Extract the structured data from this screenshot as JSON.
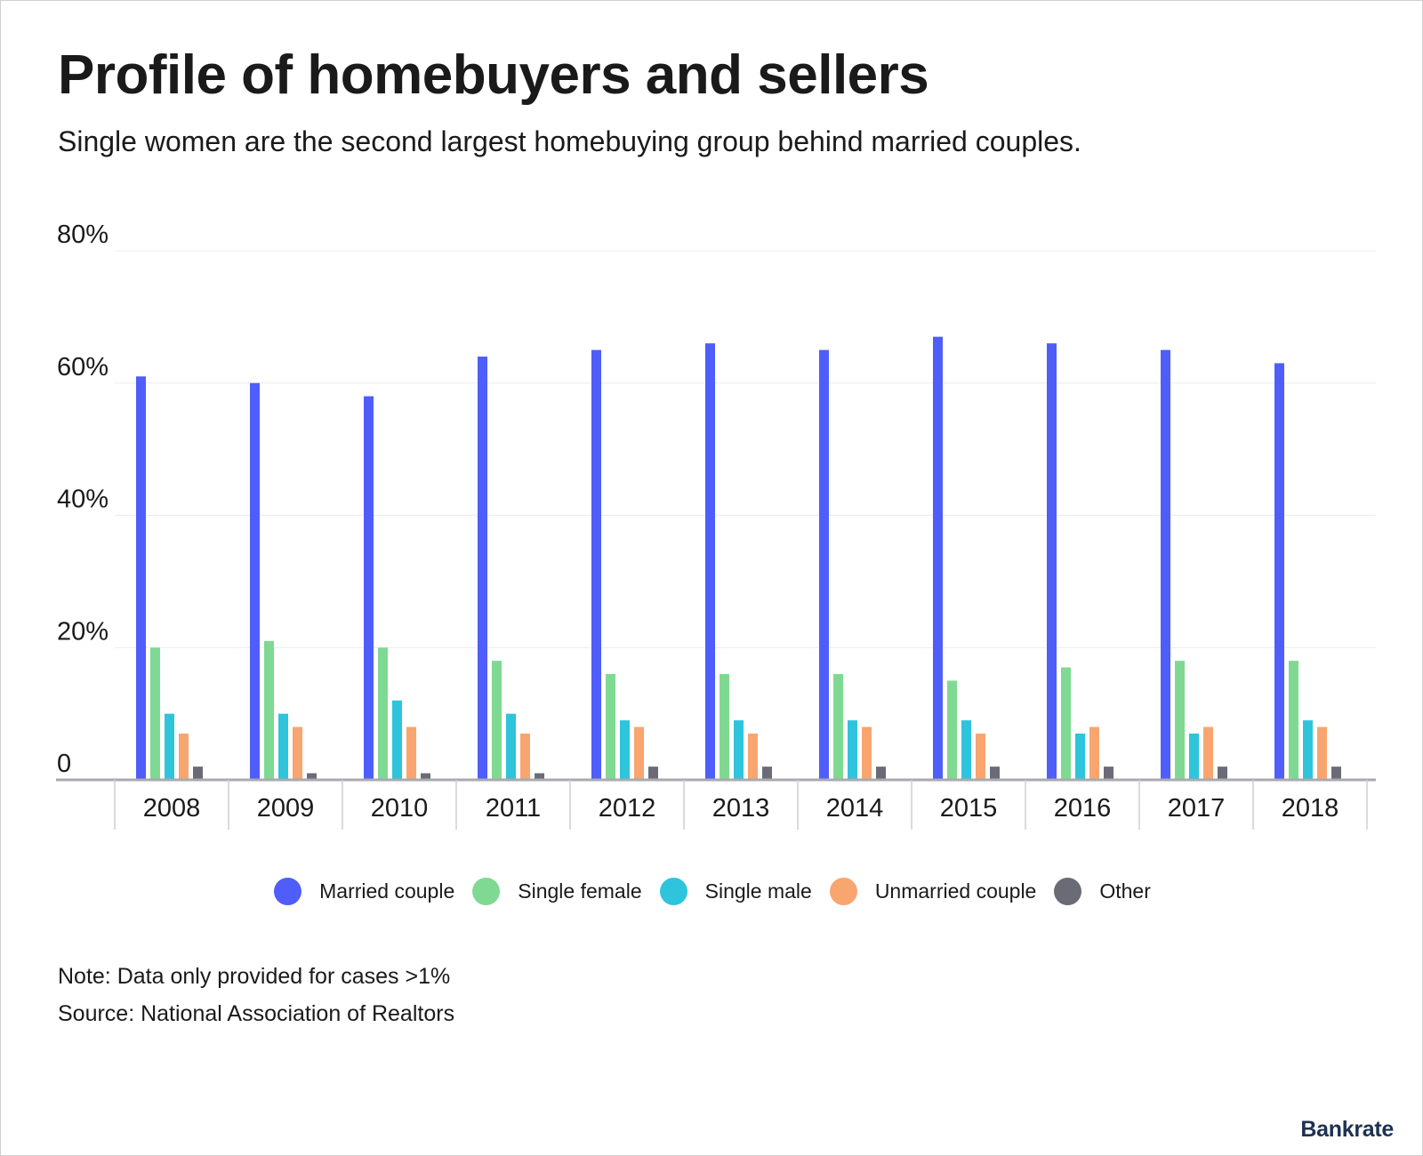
{
  "title": "Profile of homebuyers and sellers",
  "subtitle": "Single women are the second largest homebuying group behind married couples.",
  "note": "Note: Data only provided for cases >1%",
  "source": "Source: National Association of Realtors",
  "logo": "Bankrate",
  "chart_data": {
    "type": "bar",
    "title": "Profile of homebuyers and sellers",
    "subtitle": "Single women are the second largest homebuying group behind married couples.",
    "categories": [
      "2008",
      "2009",
      "2010",
      "2011",
      "2012",
      "2013",
      "2014",
      "2015",
      "2016",
      "2017",
      "2018"
    ],
    "ylim": [
      0,
      80
    ],
    "y_ticks": [
      0,
      20,
      40,
      60,
      80
    ],
    "y_tick_labels": [
      "0",
      "20%",
      "40%",
      "60%",
      "80%"
    ],
    "grid": true,
    "legend_position": "bottom",
    "series": [
      {
        "name": "Married couple",
        "color": "#4f5efa",
        "values": [
          61,
          60,
          58,
          64,
          65,
          66,
          65,
          67,
          66,
          65,
          63
        ]
      },
      {
        "name": "Single female",
        "color": "#7fd992",
        "values": [
          20,
          21,
          20,
          18,
          16,
          16,
          16,
          15,
          17,
          18,
          18
        ]
      },
      {
        "name": "Single male",
        "color": "#2ec4dc",
        "values": [
          10,
          10,
          12,
          10,
          9,
          9,
          9,
          9,
          7,
          7,
          9
        ]
      },
      {
        "name": "Unmarried couple",
        "color": "#f9a56f",
        "values": [
          7,
          8,
          8,
          7,
          8,
          7,
          8,
          7,
          8,
          8,
          8
        ]
      },
      {
        "name": "Other",
        "color": "#6b6b78",
        "values": [
          2,
          1,
          1,
          1,
          2,
          2,
          2,
          2,
          2,
          2,
          2
        ]
      }
    ]
  }
}
